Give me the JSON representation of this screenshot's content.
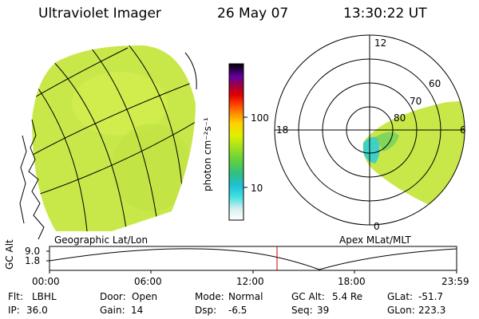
{
  "header": {
    "title": "Ultraviolet Imager",
    "date": "26 May 07",
    "time": "13:30:22 UT"
  },
  "colorbar": {
    "unit_label": "photon cm⁻²s⁻¹",
    "ticks": [
      "100",
      "10"
    ]
  },
  "polar": {
    "lat_labels": [
      "80",
      "70",
      "60"
    ],
    "mlt_labels": {
      "top": "12",
      "left": "18",
      "right": "6",
      "bottom": "0"
    }
  },
  "panel_labels": {
    "left": "Geographic Lat/Lon",
    "right": "Apex MLat/MLT"
  },
  "altitude_plot": {
    "ylabel": "GC Alt",
    "yticks": [
      "9.0",
      "1.8"
    ],
    "xticks": [
      "00:00",
      "06:00",
      "12:00",
      "18:00",
      "23:59"
    ],
    "current_marker_color": "#d00000"
  },
  "status": {
    "row1": [
      {
        "label": "Flt:",
        "value": "LBHL"
      },
      {
        "label": "Door:",
        "value": "Open"
      },
      {
        "label": "Mode:",
        "value": "Normal"
      },
      {
        "label": "GC Alt:",
        "value": "5.4 Re"
      },
      {
        "label": "GLat:",
        "value": "-51.7"
      }
    ],
    "row2": [
      {
        "label": "IP:",
        "value": "36.0"
      },
      {
        "label": "Gain:",
        "value": "14"
      },
      {
        "label": "Dsp:",
        "value": "-6.5"
      },
      {
        "label": "Seq:",
        "value": "39"
      },
      {
        "label": "GLon:",
        "value": "223.3"
      }
    ]
  }
}
